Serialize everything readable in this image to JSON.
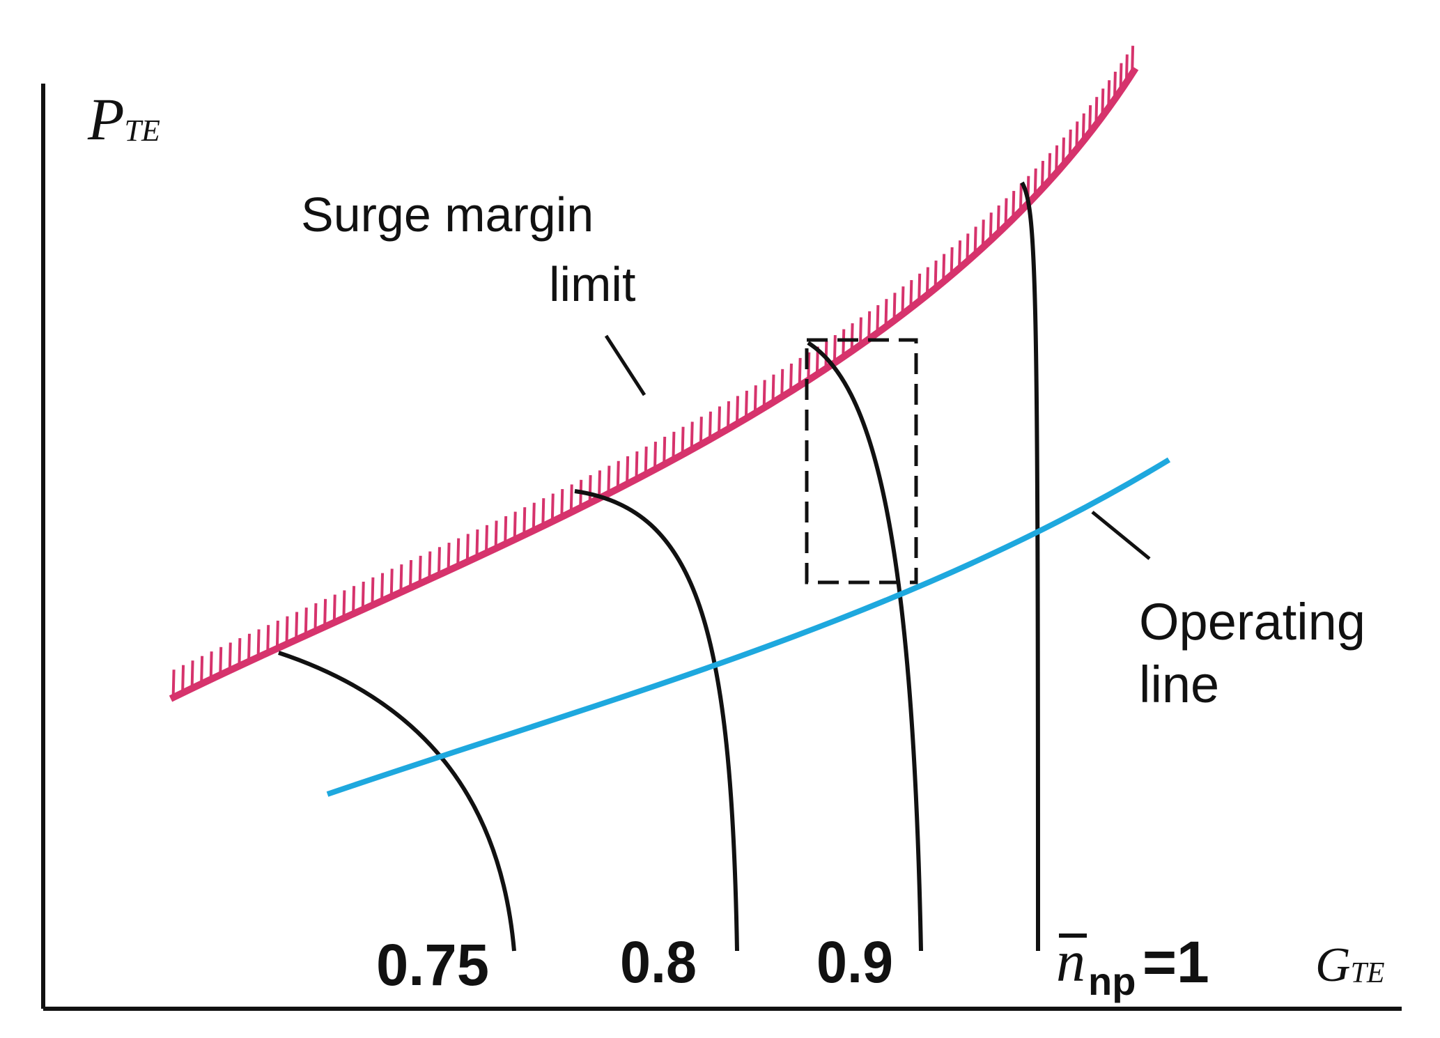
{
  "axes": {
    "y_symbol": "P",
    "y_subscript": "TE",
    "x_symbol": "G",
    "x_subscript": "TE"
  },
  "surge_label": {
    "line1": "Surge margin",
    "line2": "limit"
  },
  "operating_label": {
    "line1": "Operating",
    "line2": "line"
  },
  "speed_labels": {
    "v075": "0.75",
    "v08": "0.8",
    "v09": "0.9",
    "n_symbol": "n",
    "n_subscript": "np",
    "n_equals": "=1"
  },
  "colors": {
    "axis": "#111111",
    "curve": "#111111",
    "surge": "#d6336c",
    "operating": "#1ea8de"
  }
}
